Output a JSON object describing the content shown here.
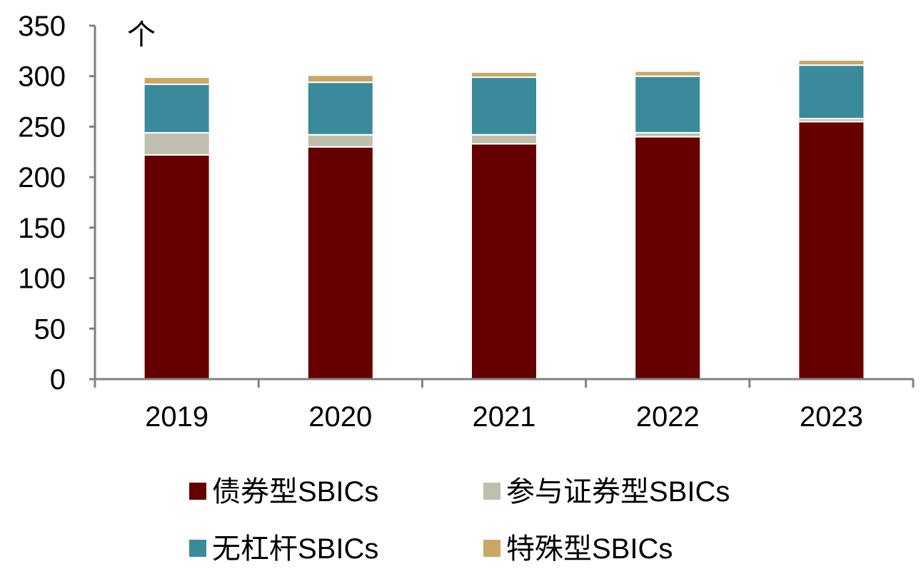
{
  "chart_data": {
    "type": "bar",
    "stacked": true,
    "unit_label": "个",
    "categories": [
      "2019",
      "2020",
      "2021",
      "2022",
      "2023"
    ],
    "series": [
      {
        "name": "债券型SBICs",
        "color": "#660000",
        "values": [
          222,
          230,
          233,
          240,
          255
        ]
      },
      {
        "name": "参与证券型SBICs",
        "color": "#BFBFAE",
        "values": [
          22,
          12,
          9,
          4,
          3
        ]
      },
      {
        "name": "无杠杆SBICs",
        "color": "#3A8A9C",
        "values": [
          48,
          52,
          57,
          56,
          53
        ]
      },
      {
        "name": "特殊型SBICs",
        "color": "#C9A765",
        "values": [
          7,
          7,
          5,
          5,
          5
        ]
      }
    ],
    "ylim": [
      0,
      350
    ],
    "yticks": [
      "0",
      "50",
      "100",
      "150",
      "200",
      "250",
      "300",
      "350"
    ],
    "grid": false,
    "legend_position": "bottom"
  }
}
